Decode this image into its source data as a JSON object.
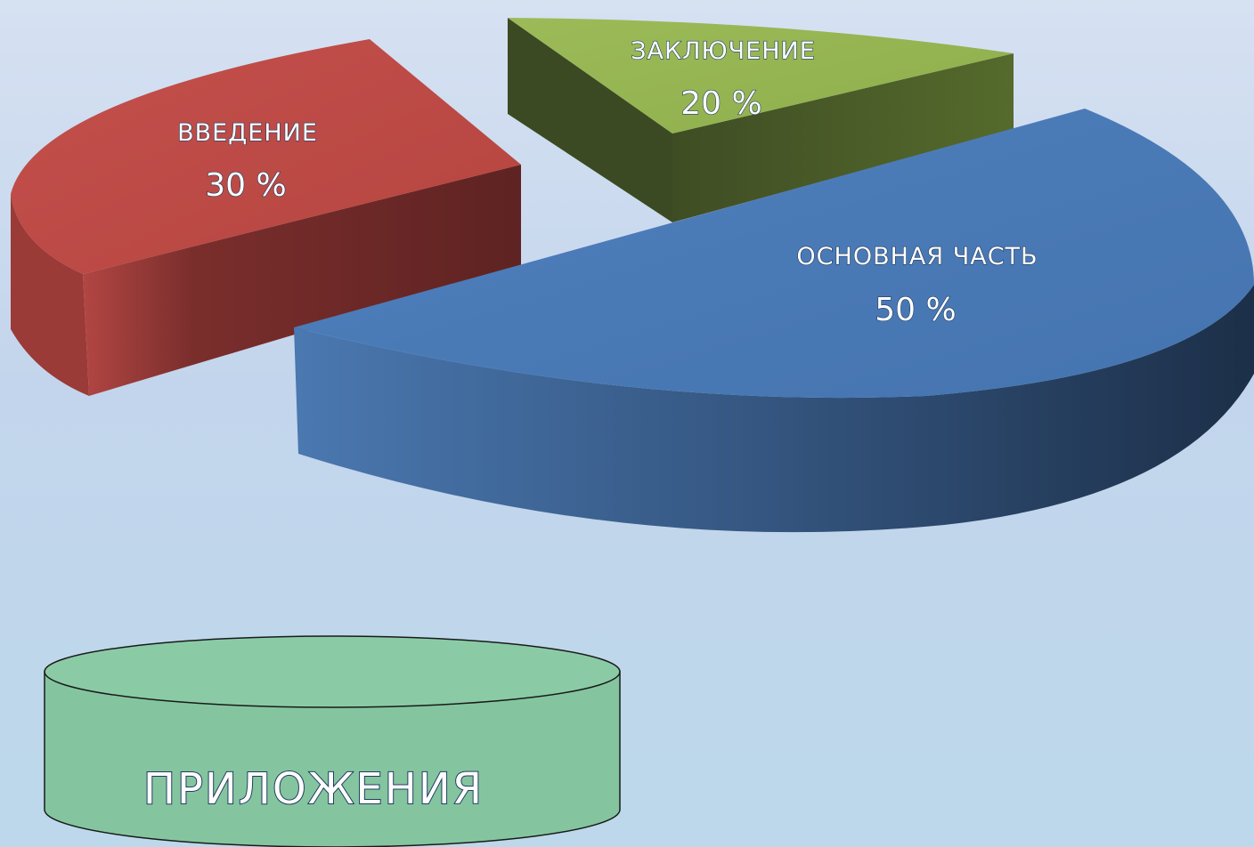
{
  "chart_data": {
    "type": "pie",
    "style": "3d-exploded",
    "slices": [
      {
        "name": "ЗАКЛЮЧЕНИЕ",
        "value": 20,
        "label": "20 %",
        "color": "#98b654",
        "side_color": "#4a5a28"
      },
      {
        "name": "ОСНОВНАЯ ЧАСТЬ",
        "value": 50,
        "label": "50 %",
        "color": "#4a7bb7",
        "side_color": "#2b4a72"
      },
      {
        "name": "ВВЕДЕНИЕ",
        "value": 30,
        "label": "30 %",
        "color": "#bd4d49",
        "side_color": "#5e2322"
      }
    ]
  },
  "appendix": {
    "label": "ПРИЛОЖЕНИЯ",
    "color": "#86c6a0"
  }
}
